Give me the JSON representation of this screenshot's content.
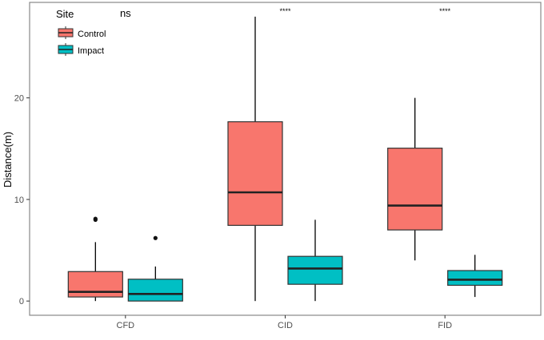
{
  "chart_data": {
    "type": "boxplot",
    "title": "",
    "xlabel": "",
    "ylabel": "Distance(m)",
    "ylim": [
      -1.4,
      29.4
    ],
    "yticks": [
      0,
      10,
      20
    ],
    "categories": [
      "CFD",
      "CID",
      "FID"
    ],
    "grid": false,
    "legend": {
      "title": "Site",
      "position": "top-left",
      "entries": [
        "Control",
        "Impact"
      ]
    },
    "colors": {
      "Control": "#F8766D",
      "Impact": "#00BFC4"
    },
    "annotations": [
      "ns",
      "****",
      "****"
    ],
    "series": [
      {
        "name": "Control",
        "boxes": [
          {
            "category": "CFD",
            "whisker_low": 0.0,
            "q1": 0.4,
            "median": 0.9,
            "q3": 2.9,
            "whisker_high": 5.8,
            "outliers": [
              8.0,
              8.1
            ]
          },
          {
            "category": "CID",
            "whisker_low": 0.0,
            "q1": 7.45,
            "median": 10.7,
            "q3": 17.65,
            "whisker_high": 28.0,
            "outliers": []
          },
          {
            "category": "FID",
            "whisker_low": 4.0,
            "q1": 7.0,
            "median": 9.4,
            "q3": 15.05,
            "whisker_high": 20.0,
            "outliers": []
          }
        ]
      },
      {
        "name": "Impact",
        "boxes": [
          {
            "category": "CFD",
            "whisker_low": 0.0,
            "q1": 0.0,
            "median": 0.7,
            "q3": 2.15,
            "whisker_high": 3.4,
            "outliers": [
              6.2
            ]
          },
          {
            "category": "CID",
            "whisker_low": 0.0,
            "q1": 1.65,
            "median": 3.2,
            "q3": 4.4,
            "whisker_high": 8.0,
            "outliers": []
          },
          {
            "category": "FID",
            "whisker_low": 0.4,
            "q1": 1.55,
            "median": 2.1,
            "q3": 3.0,
            "whisker_high": 4.55,
            "outliers": []
          }
        ]
      }
    ]
  }
}
